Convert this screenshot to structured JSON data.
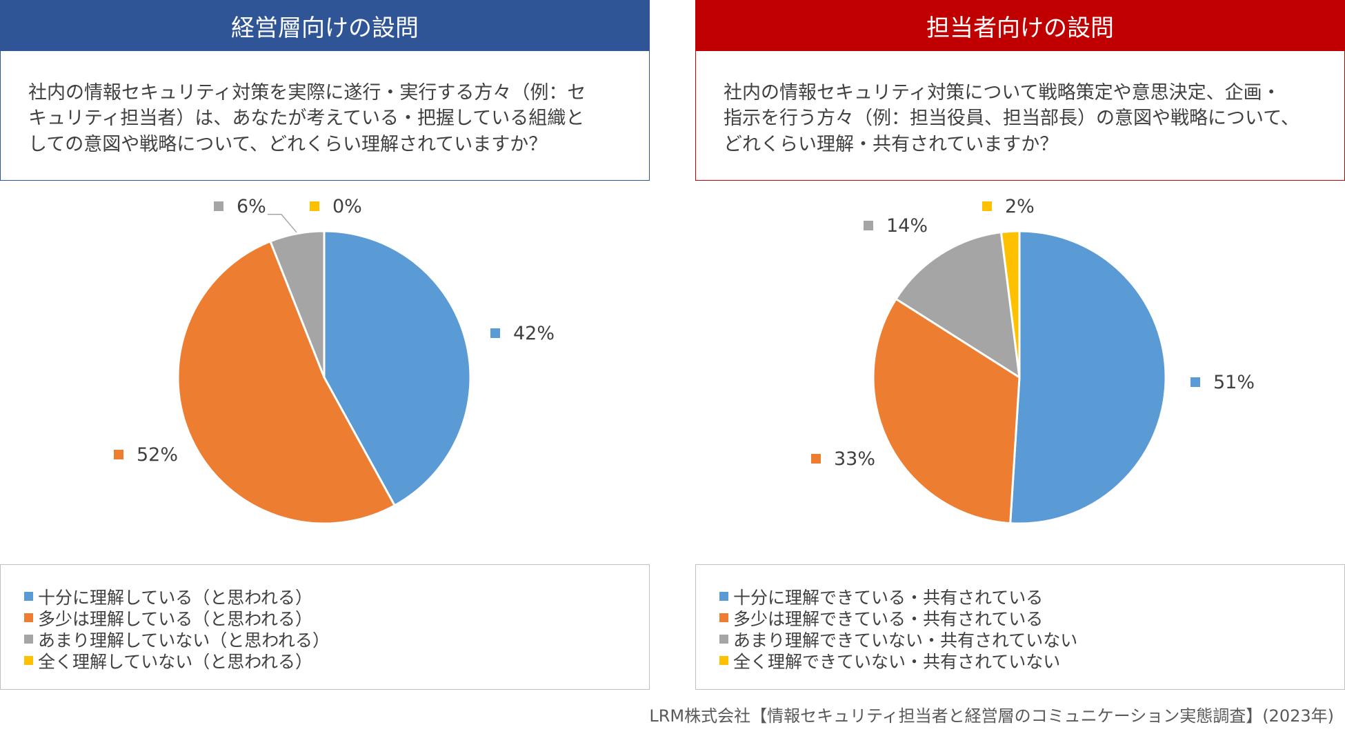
{
  "chart_data": [
    {
      "type": "pie",
      "title": "経営層向けの設問",
      "question": "社内の情報セキュリティ対策を実際に遂行・実行する方々（例：セキュリティ担当者）は、あなたが考えている・把握している組織としての意図や戦略について、どれくらい理解されていますか？",
      "question_lines": [
        "社内の情報セキュリティ対策を実際に遂行・実行する方々（例：セ",
        "キュリティ担当者）は、あなたが考えている・把握している組織と",
        "しての意図や戦略について、どれくらい理解されていますか？"
      ],
      "header_color": "#2F5597",
      "border_color": "#2F5597",
      "categories": [
        "十分に理解している（と思われる）",
        "多少は理解している（と思われる）",
        "あまり理解していない（と思われる）",
        "全く理解していない（と思われる）"
      ],
      "values": [
        42,
        52,
        6,
        0
      ],
      "labels": [
        "42%",
        "52%",
        "6%",
        "0%"
      ],
      "colors": [
        "#5B9BD5",
        "#ED7D31",
        "#A5A5A5",
        "#FFC000"
      ]
    },
    {
      "type": "pie",
      "title": "担当者向けの設問",
      "question": "社内の情報セキュリティ対策について戦略策定や意思決定、企画・指示を行う方々（例：担当役員、担当部長）の意図や戦略について、どれくらい理解・共有されていますか？",
      "question_lines": [
        "社内の情報セキュリティ対策について戦略策定や意思決定、企画・",
        "指示を行う方々（例：担当役員、担当部長）の意図や戦略について、",
        "どれくらい理解・共有されていますか？"
      ],
      "header_color": "#C00000",
      "border_color": "#C00000",
      "categories": [
        "十分に理解できている・共有されている",
        "多少は理解できている・共有されている",
        "あまり理解できていない・共有されていない",
        "全く理解できていない・共有されていない"
      ],
      "values": [
        51,
        33,
        14,
        2
      ],
      "labels": [
        "51%",
        "33%",
        "14%",
        "2%"
      ],
      "colors": [
        "#5B9BD5",
        "#ED7D31",
        "#A5A5A5",
        "#FFC000"
      ]
    }
  ],
  "footer": "LRM株式会社【情報セキュリティ担当者と経営層のコミュニケーション実態調査】(2023年)"
}
